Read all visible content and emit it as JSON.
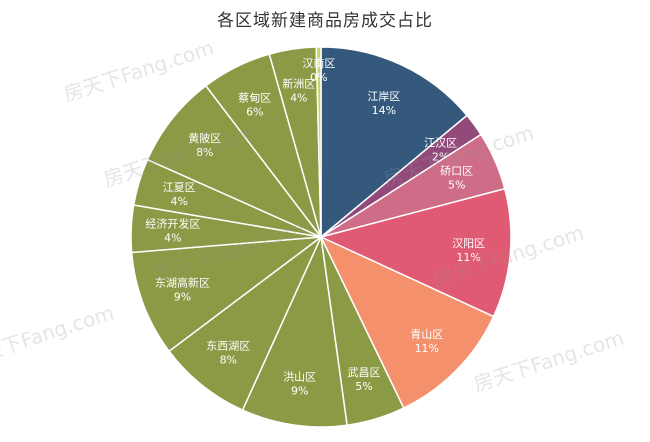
{
  "title": "各区域新建商品房成交占比",
  "watermark": "房天下Fang.com",
  "chart_data": {
    "type": "pie",
    "title": "各区域新建商品房成交占比",
    "slices": [
      {
        "label": "江岸区",
        "value": 14,
        "pct": "14%",
        "color": "#34597d"
      },
      {
        "label": "江汉区",
        "value": 2,
        "pct": "2%",
        "color": "#924a7a"
      },
      {
        "label": "硚口区",
        "value": 5,
        "pct": "5%",
        "color": "#cf6d88"
      },
      {
        "label": "汉阳区",
        "value": 11,
        "pct": "11%",
        "color": "#e05a73"
      },
      {
        "label": "青山区",
        "value": 11,
        "pct": "11%",
        "color": "#f4906c"
      },
      {
        "label": "武昌区",
        "value": 5,
        "pct": "5%",
        "color": "#8b9a45"
      },
      {
        "label": "洪山区",
        "value": 9,
        "pct": "9%",
        "color": "#8b9a45"
      },
      {
        "label": "东西湖区",
        "value": 8,
        "pct": "8%",
        "color": "#8b9a45"
      },
      {
        "label": "东湖高新区",
        "value": 9,
        "pct": "9%",
        "color": "#8b9a45"
      },
      {
        "label": "经济开发区",
        "value": 4,
        "pct": "4%",
        "color": "#8b9a45"
      },
      {
        "label": "江夏区",
        "value": 4,
        "pct": "4%",
        "color": "#8b9a45"
      },
      {
        "label": "黄陂区",
        "value": 8,
        "pct": "8%",
        "color": "#8b9a45"
      },
      {
        "label": "蔡甸区",
        "value": 6,
        "pct": "6%",
        "color": "#8b9a45"
      },
      {
        "label": "新洲区",
        "value": 4,
        "pct": "4%",
        "color": "#8b9a45"
      },
      {
        "label": "汉南区",
        "value": 0.4,
        "pct": "0%",
        "color": "#c7d36a"
      }
    ]
  }
}
